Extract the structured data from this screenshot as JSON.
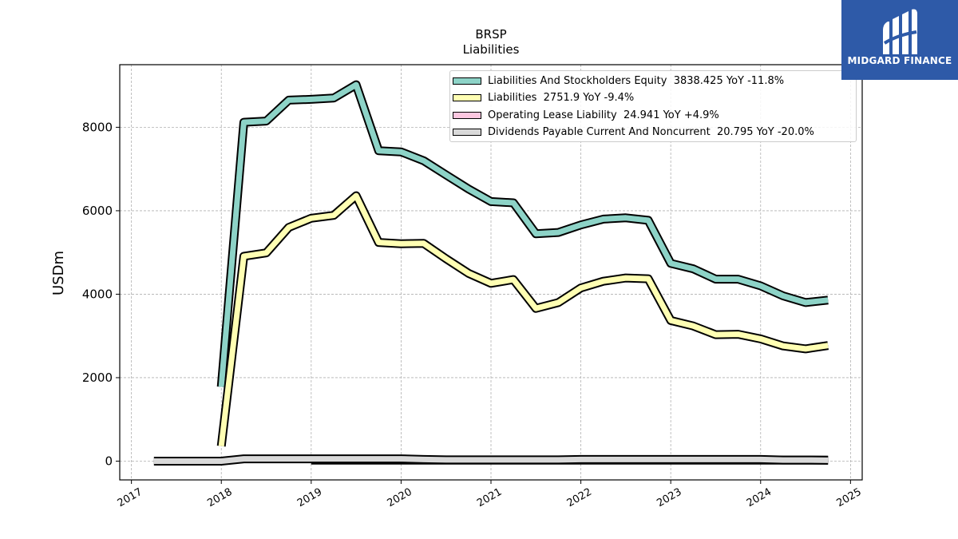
{
  "chart_data": {
    "type": "line",
    "title": "BRSP",
    "subtitle": "Liabilities",
    "ylabel": "USDm",
    "xlabel": "",
    "xlim": [
      2016.87,
      2025.13
    ],
    "ylim": [
      -450,
      9500
    ],
    "x_ticks": [
      "2017",
      "2018",
      "2019",
      "2020",
      "2021",
      "2022",
      "2023",
      "2024",
      "2025"
    ],
    "y_ticks": [
      "0",
      "2000",
      "4000",
      "6000",
      "8000"
    ],
    "grid": true,
    "legend_position": "top-right",
    "series": [
      {
        "name": "Liabilities And Stockholders Equity",
        "legend": "Liabilities And Stockholders Equity  3838.425 YoY -11.8%",
        "color": "#8dd3c7",
        "x": [
          2018.0,
          2018.25,
          2018.5,
          2018.75,
          2019.0,
          2019.25,
          2019.5,
          2019.75,
          2020.0,
          2020.25,
          2020.5,
          2020.75,
          2021.0,
          2021.25,
          2021.5,
          2021.75,
          2022.0,
          2022.25,
          2022.5,
          2022.75,
          2023.0,
          2023.25,
          2023.5,
          2023.75,
          2024.0,
          2024.25,
          2024.5,
          2024.75
        ],
        "values": [
          1780,
          8120,
          8150,
          8650,
          8670,
          8700,
          9020,
          7440,
          7410,
          7200,
          6860,
          6520,
          6220,
          6190,
          5450,
          5480,
          5660,
          5800,
          5830,
          5770,
          4740,
          4610,
          4360,
          4360,
          4200,
          3960,
          3800,
          3860
        ]
      },
      {
        "name": "Liabilities",
        "legend": "Liabilities  2751.9 YoY -9.4%",
        "color": "#ffffb3",
        "x": [
          2018.0,
          2018.25,
          2018.5,
          2018.75,
          2019.0,
          2019.25,
          2019.5,
          2019.75,
          2020.0,
          2020.25,
          2020.5,
          2020.75,
          2021.0,
          2021.25,
          2021.5,
          2021.75,
          2022.0,
          2022.25,
          2022.5,
          2022.75,
          2023.0,
          2023.25,
          2023.5,
          2023.75,
          2024.0,
          2024.25,
          2024.5,
          2024.75
        ],
        "values": [
          360,
          4910,
          4990,
          5600,
          5820,
          5890,
          6360,
          5240,
          5210,
          5220,
          4850,
          4500,
          4260,
          4350,
          3660,
          3800,
          4150,
          4310,
          4390,
          4370,
          3370,
          3240,
          3030,
          3040,
          2930,
          2760,
          2690,
          2770
        ]
      },
      {
        "name": "Operating Lease Liability",
        "legend": "Operating Lease Liability  24.941 YoY +4.9%",
        "color": "#fcc7e0",
        "x": [
          2019.0,
          2019.5,
          2020.0,
          2020.5,
          2021.0,
          2021.5,
          2022.0,
          2022.5,
          2023.0,
          2023.5,
          2024.0,
          2024.75
        ],
        "values": [
          22,
          23,
          24,
          24,
          24,
          23,
          23,
          24,
          24,
          24,
          24,
          25
        ]
      },
      {
        "name": "Dividends Payable Current And Noncurrent",
        "legend": "Dividends Payable Current And Noncurrent  20.795 YoY -20.0%",
        "color": "#d9d9d9",
        "x": [
          2017.25,
          2017.5,
          2017.75,
          2018.0,
          2018.25,
          2018.5,
          2018.75,
          2019.0,
          2019.25,
          2019.5,
          2019.75,
          2020.0,
          2020.25,
          2020.5,
          2020.75,
          2021.0,
          2021.25,
          2021.5,
          2021.75,
          2022.0,
          2022.25,
          2022.5,
          2022.75,
          2023.0,
          2023.25,
          2023.5,
          2023.75,
          2024.0,
          2024.25,
          2024.5,
          2024.75
        ],
        "values": [
          0,
          0,
          0,
          0,
          55,
          55,
          55,
          55,
          55,
          55,
          55,
          55,
          40,
          30,
          30,
          30,
          30,
          30,
          30,
          40,
          40,
          40,
          40,
          40,
          40,
          40,
          40,
          40,
          26,
          26,
          21
        ]
      }
    ]
  },
  "logo": {
    "text": "MIDGARD FINANCE",
    "color": "#2e5aa8"
  }
}
